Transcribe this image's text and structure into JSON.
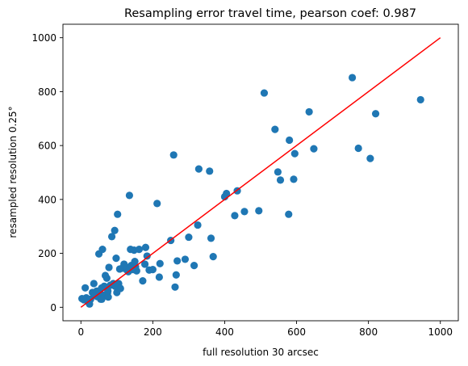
{
  "chart_data": {
    "type": "scatter",
    "title": "Resampling error travel time, pearson coef: 0.987",
    "xlabel": "full resolution 30 arcsec",
    "ylabel": "resampled resolution 0.25°",
    "xlim": [
      -50,
      1050
    ],
    "ylim": [
      -50,
      1050
    ],
    "xticks": [
      0,
      200,
      400,
      600,
      800,
      1000
    ],
    "yticks": [
      0,
      200,
      400,
      600,
      800,
      1000
    ],
    "grid": false,
    "series": [
      {
        "color": "#1f77b4",
        "points": [
          [
            3,
            32
          ],
          [
            8,
            28
          ],
          [
            12,
            72
          ],
          [
            15,
            35
          ],
          [
            20,
            20
          ],
          [
            24,
            12
          ],
          [
            27,
            30
          ],
          [
            32,
            55
          ],
          [
            36,
            88
          ],
          [
            40,
            45
          ],
          [
            44,
            60
          ],
          [
            48,
            50
          ],
          [
            52,
            62
          ],
          [
            55,
            30
          ],
          [
            58,
            72
          ],
          [
            62,
            45
          ],
          [
            65,
            78
          ],
          [
            68,
            118
          ],
          [
            72,
            108
          ],
          [
            74,
            52
          ],
          [
            76,
            38
          ],
          [
            78,
            148
          ],
          [
            82,
            82
          ],
          [
            86,
            262
          ],
          [
            90,
            88
          ],
          [
            94,
            285
          ],
          [
            98,
            182
          ],
          [
            100,
            55
          ],
          [
            102,
            345
          ],
          [
            105,
            88
          ],
          [
            108,
            142
          ],
          [
            115,
            145
          ],
          [
            120,
            160
          ],
          [
            124,
            150
          ],
          [
            128,
            138
          ],
          [
            132,
            132
          ],
          [
            135,
            415
          ],
          [
            138,
            215
          ],
          [
            140,
            155
          ],
          [
            145,
            140
          ],
          [
            148,
            212
          ],
          [
            150,
            170
          ],
          [
            152,
            150
          ],
          [
            155,
            135
          ],
          [
            162,
            215
          ],
          [
            172,
            98
          ],
          [
            178,
            160
          ],
          [
            180,
            222
          ],
          [
            184,
            190
          ],
          [
            190,
            138
          ],
          [
            200,
            140
          ],
          [
            212,
            385
          ],
          [
            218,
            112
          ],
          [
            220,
            162
          ],
          [
            250,
            248
          ],
          [
            258,
            565
          ],
          [
            262,
            75
          ],
          [
            265,
            120
          ],
          [
            268,
            172
          ],
          [
            290,
            178
          ],
          [
            300,
            260
          ],
          [
            315,
            155
          ],
          [
            325,
            305
          ],
          [
            328,
            513
          ],
          [
            358,
            505
          ],
          [
            362,
            256
          ],
          [
            368,
            188
          ],
          [
            400,
            410
          ],
          [
            405,
            422
          ],
          [
            428,
            340
          ],
          [
            435,
            432
          ],
          [
            455,
            355
          ],
          [
            495,
            358
          ],
          [
            510,
            795
          ],
          [
            540,
            660
          ],
          [
            548,
            502
          ],
          [
            555,
            472
          ],
          [
            578,
            345
          ],
          [
            580,
            620
          ],
          [
            592,
            475
          ],
          [
            595,
            570
          ],
          [
            635,
            725
          ],
          [
            648,
            588
          ],
          [
            50,
            198
          ],
          [
            60,
            215
          ],
          [
            45,
            40
          ],
          [
            58,
            30
          ],
          [
            75,
            60
          ],
          [
            95,
            78
          ],
          [
            110,
            70
          ],
          [
            755,
            852
          ],
          [
            772,
            590
          ],
          [
            805,
            552
          ],
          [
            820,
            718
          ],
          [
            945,
            770
          ]
        ]
      }
    ],
    "reference_line": {
      "color": "#ff0000",
      "from": [
        0,
        0
      ],
      "to": [
        1000,
        1000
      ]
    }
  }
}
